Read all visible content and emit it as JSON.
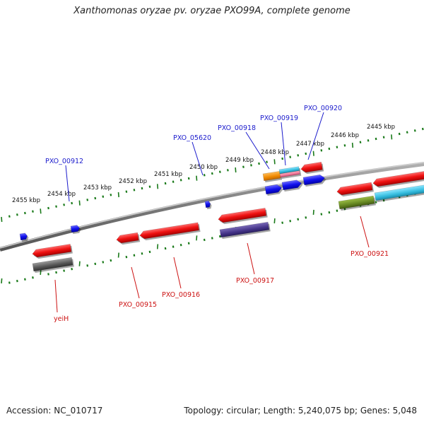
{
  "title": "Xanthomonas oryzae pv. oryzae PXO99A, complete genome",
  "footer": {
    "accession": "Accession: NC_010717",
    "summary": "Topology: circular; Length: 5,240,075 bp; Genes: 5,048"
  },
  "colors": {
    "backbone": "#808080",
    "tick": "#1a7a1a",
    "blue_label": "#1a1acc",
    "red_label": "#cc1111",
    "gene_red": "#ee1111",
    "gene_blue": "#1111ee",
    "gene_orange": "#ee8800",
    "gene_cyan": "#33bbdd",
    "gene_pink": "#ee7799",
    "gene_purple": "#443388",
    "gene_olive": "#668822",
    "gene_grey": "#555555"
  },
  "kbp_labels": [
    "2445 kbp",
    "2446 kbp",
    "2447 kbp",
    "2448 kbp",
    "2449 kbp",
    "2450 kbp",
    "2451 kbp",
    "2452 kbp",
    "2453 kbp",
    "2454 kbp",
    "2455 kbp"
  ],
  "top_gene_labels": [
    "PXO_00912",
    "PXO_05620",
    "PXO_00918",
    "PXO_00919",
    "PXO_00920"
  ],
  "bottom_gene_labels": [
    "yeiH",
    "PXO_00915",
    "PXO_00916",
    "PXO_00917",
    "PXO_00921"
  ]
}
